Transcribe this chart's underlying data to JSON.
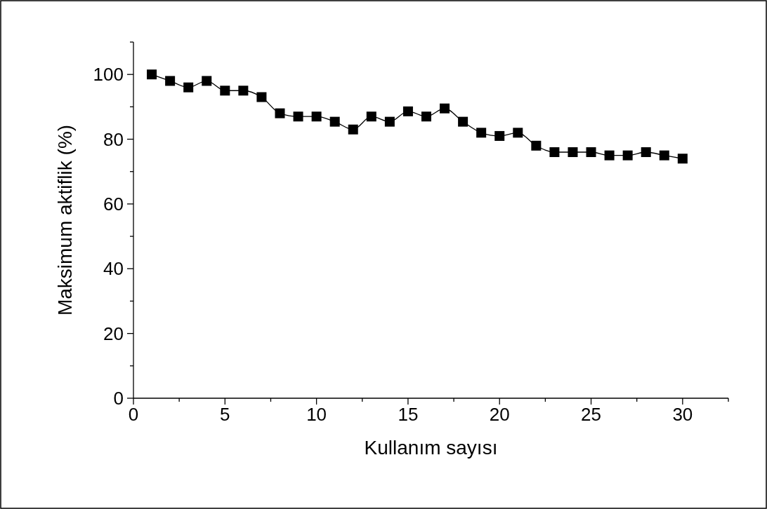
{
  "chart_data": {
    "type": "line",
    "xlabel": "Kullanım sayısı",
    "ylabel": "Maksimum aktiflik (%)",
    "x": [
      1,
      2,
      3,
      4,
      5,
      6,
      7,
      8,
      9,
      10,
      11,
      12,
      13,
      14,
      15,
      16,
      17,
      18,
      19,
      20,
      21,
      22,
      23,
      24,
      25,
      26,
      27,
      28,
      29,
      30
    ],
    "series": [
      {
        "color": "#000000",
        "values": [
          100,
          98,
          96,
          98,
          95,
          95,
          93,
          88,
          87,
          87,
          85.4,
          83,
          87,
          85.4,
          88.6,
          87,
          89.5,
          85.4,
          82,
          81,
          82,
          78,
          76,
          76,
          76,
          75,
          75,
          76,
          75,
          74
        ]
      }
    ],
    "marker": "square",
    "line_style": "solid",
    "grid": false,
    "xlim": [
      0,
      32.5
    ],
    "ylim": [
      0,
      110
    ],
    "xticks": [
      0,
      {
        "value": 2.5,
        "label": null
      },
      5,
      {
        "value": 7.5,
        "label": null
      },
      10,
      {
        "value": 12.5,
        "label": null
      },
      15,
      {
        "value": 17.5,
        "label": null
      },
      20,
      {
        "value": 22.5,
        "label": null
      },
      25,
      {
        "value": 27.5,
        "label": null
      },
      30,
      {
        "value": 32.5,
        "label": null
      }
    ],
    "yticks": [
      0,
      {
        "value": 10,
        "label": null
      },
      20,
      {
        "value": 30,
        "label": null
      },
      40,
      {
        "value": 50,
        "label": null
      },
      60,
      {
        "value": 70,
        "label": null
      },
      80,
      {
        "value": 90,
        "label": null
      },
      100,
      {
        "value": 110,
        "label": null
      }
    ]
  }
}
